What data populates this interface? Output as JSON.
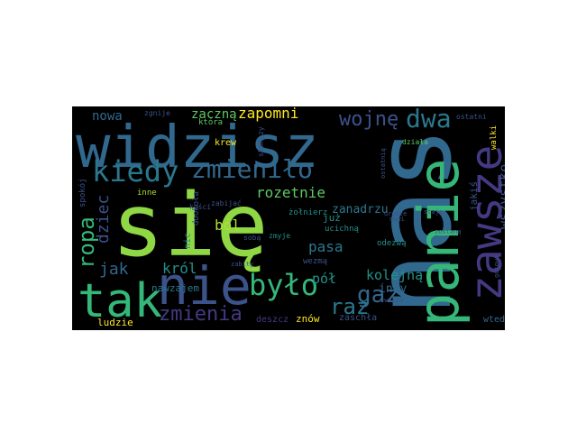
{
  "colors": {
    "background": "#000000",
    "palette": [
      "#440154",
      "#3b528b",
      "#21918c",
      "#5ec962",
      "#fde725"
    ]
  },
  "words": [
    {
      "id": "nas",
      "text": "nas",
      "color": "#31688e"
    },
    {
      "id": "sie",
      "text": "się",
      "color": "#8fd744"
    },
    {
      "id": "widzisz",
      "text": "widzisz",
      "color": "#31688e"
    },
    {
      "id": "panie",
      "text": "panie",
      "color": "#35b779"
    },
    {
      "id": "zawsze",
      "text": "zawsze",
      "color": "#443983"
    },
    {
      "id": "tak",
      "text": "tak",
      "color": "#35b779"
    },
    {
      "id": "nie",
      "text": "nie",
      "color": "#3b528b"
    },
    {
      "id": "kiedy",
      "text": "kiedy",
      "color": "#2a788e"
    },
    {
      "id": "zmienilo",
      "text": "zmieniło",
      "color": "#31688e"
    },
    {
      "id": "bylo",
      "text": "było",
      "color": "#35b779"
    },
    {
      "id": "gaz",
      "text": "gaz",
      "color": "#31688e"
    },
    {
      "id": "raz",
      "text": "raz",
      "color": "#2a788e"
    },
    {
      "id": "ropa",
      "text": "ropa",
      "color": "#35b779"
    },
    {
      "id": "dwa",
      "text": "dwa",
      "color": "#2a788e"
    },
    {
      "id": "wojne",
      "text": "wojnę",
      "color": "#3b528b"
    },
    {
      "id": "zmienia",
      "text": "zmienia",
      "color": "#443983"
    },
    {
      "id": "rozetnie",
      "text": "rozetnie",
      "color": "#5ec962"
    },
    {
      "id": "zapomni",
      "text": "zapomni",
      "color": "#fde725"
    },
    {
      "id": "kolejna",
      "text": "kolejną",
      "color": "#21918c"
    },
    {
      "id": "pol",
      "text": "pół",
      "color": "#21918c"
    },
    {
      "id": "dziec",
      "text": "dziec",
      "color": "#3b528b"
    },
    {
      "id": "jak",
      "text": "jak",
      "color": "#31688e"
    },
    {
      "id": "krol",
      "text": "król",
      "color": "#21918c"
    },
    {
      "id": "pasa",
      "text": "pasa",
      "color": "#2a788e"
    },
    {
      "id": "bol",
      "text": "ból",
      "color": "#b5de2b"
    },
    {
      "id": "nowa",
      "text": "nowa",
      "color": "#31688e"
    },
    {
      "id": "zaczna",
      "text": "zaczną",
      "color": "#5ec962"
    },
    {
      "id": "wszystko",
      "text": "wszystko",
      "color": "#3b528b"
    },
    {
      "id": "zanadrzu",
      "text": "zanadrzu",
      "color": "#2a788e"
    },
    {
      "id": "inny",
      "text": "inny",
      "color": "#31688e"
    },
    {
      "id": "nawzajem",
      "text": "nawzajem",
      "color": "#2a788e"
    },
    {
      "id": "ludzie",
      "text": "ludzie",
      "color": "#fde725"
    },
    {
      "id": "znow",
      "text": "znów",
      "color": "#fde725"
    },
    {
      "id": "deszcz",
      "text": "deszcz",
      "color": "#443983"
    },
    {
      "id": "zaschla",
      "text": "zaschła",
      "color": "#3b528b"
    },
    {
      "id": "wtedy",
      "text": "wtedy",
      "color": "#31688e"
    },
    {
      "id": "jakis",
      "text": "jakiś",
      "color": "#3b528b"
    },
    {
      "id": "juz",
      "text": "już",
      "color": "#21918c"
    },
    {
      "id": "zolnierz",
      "text": "żołnierz",
      "color": "#21918c"
    },
    {
      "id": "ucichna",
      "text": "ucichną",
      "color": "#21918c"
    },
    {
      "id": "odezwa",
      "text": "odezwą",
      "color": "#21918c"
    },
    {
      "id": "wezma",
      "text": "wezmą",
      "color": "#3b528b"
    },
    {
      "id": "zmyje",
      "text": "zmyje",
      "color": "#21918c"
    },
    {
      "id": "soba",
      "text": "sobą",
      "color": "#3b528b"
    },
    {
      "id": "nic",
      "text": "nic",
      "color": "#21918c"
    },
    {
      "id": "dookola",
      "text": "dookoła",
      "color": "#3b528b"
    },
    {
      "id": "krew",
      "text": "krew",
      "color": "#fde725"
    },
    {
      "id": "zabijac",
      "text": "zabijać",
      "color": "#3b528b"
    },
    {
      "id": "kosci",
      "text": "kości",
      "color": "#3b528b"
    },
    {
      "id": "inne",
      "text": "inne",
      "color": "#b5de2b"
    },
    {
      "id": "spokoj",
      "text": "spokój",
      "color": "#3b528b"
    },
    {
      "id": "ktora",
      "text": "która",
      "color": "#5ec962"
    },
    {
      "id": "zgnije",
      "text": "zgnije",
      "color": "#3b528b"
    },
    {
      "id": "skonczy",
      "text": "skończy",
      "color": "#3b528b"
    },
    {
      "id": "dziala",
      "text": "działa",
      "color": "#5ec962"
    },
    {
      "id": "ostatni",
      "text": "ostatni",
      "color": "#3b528b"
    },
    {
      "id": "walki",
      "text": "walki",
      "color": "#fde725"
    },
    {
      "id": "zostana",
      "text": "zostaną",
      "color": "#3b528b"
    },
    {
      "id": "nowi",
      "text": "nowi",
      "color": "#3b528b"
    },
    {
      "id": "drodze",
      "text": "drodze",
      "color": "#3b528b"
    },
    {
      "id": "zwarci",
      "text": "zwarci",
      "color": "#3b528b"
    },
    {
      "id": "ostatnia",
      "text": "ostatnią",
      "color": "#3b528b"
    },
    {
      "id": "staja",
      "text": "stają",
      "color": "#3b528b"
    },
    {
      "id": "zabity",
      "text": "zabity",
      "color": "#3b528b"
    },
    {
      "id": "gotowi",
      "text": "gotowi",
      "color": "#3b528b"
    }
  ]
}
